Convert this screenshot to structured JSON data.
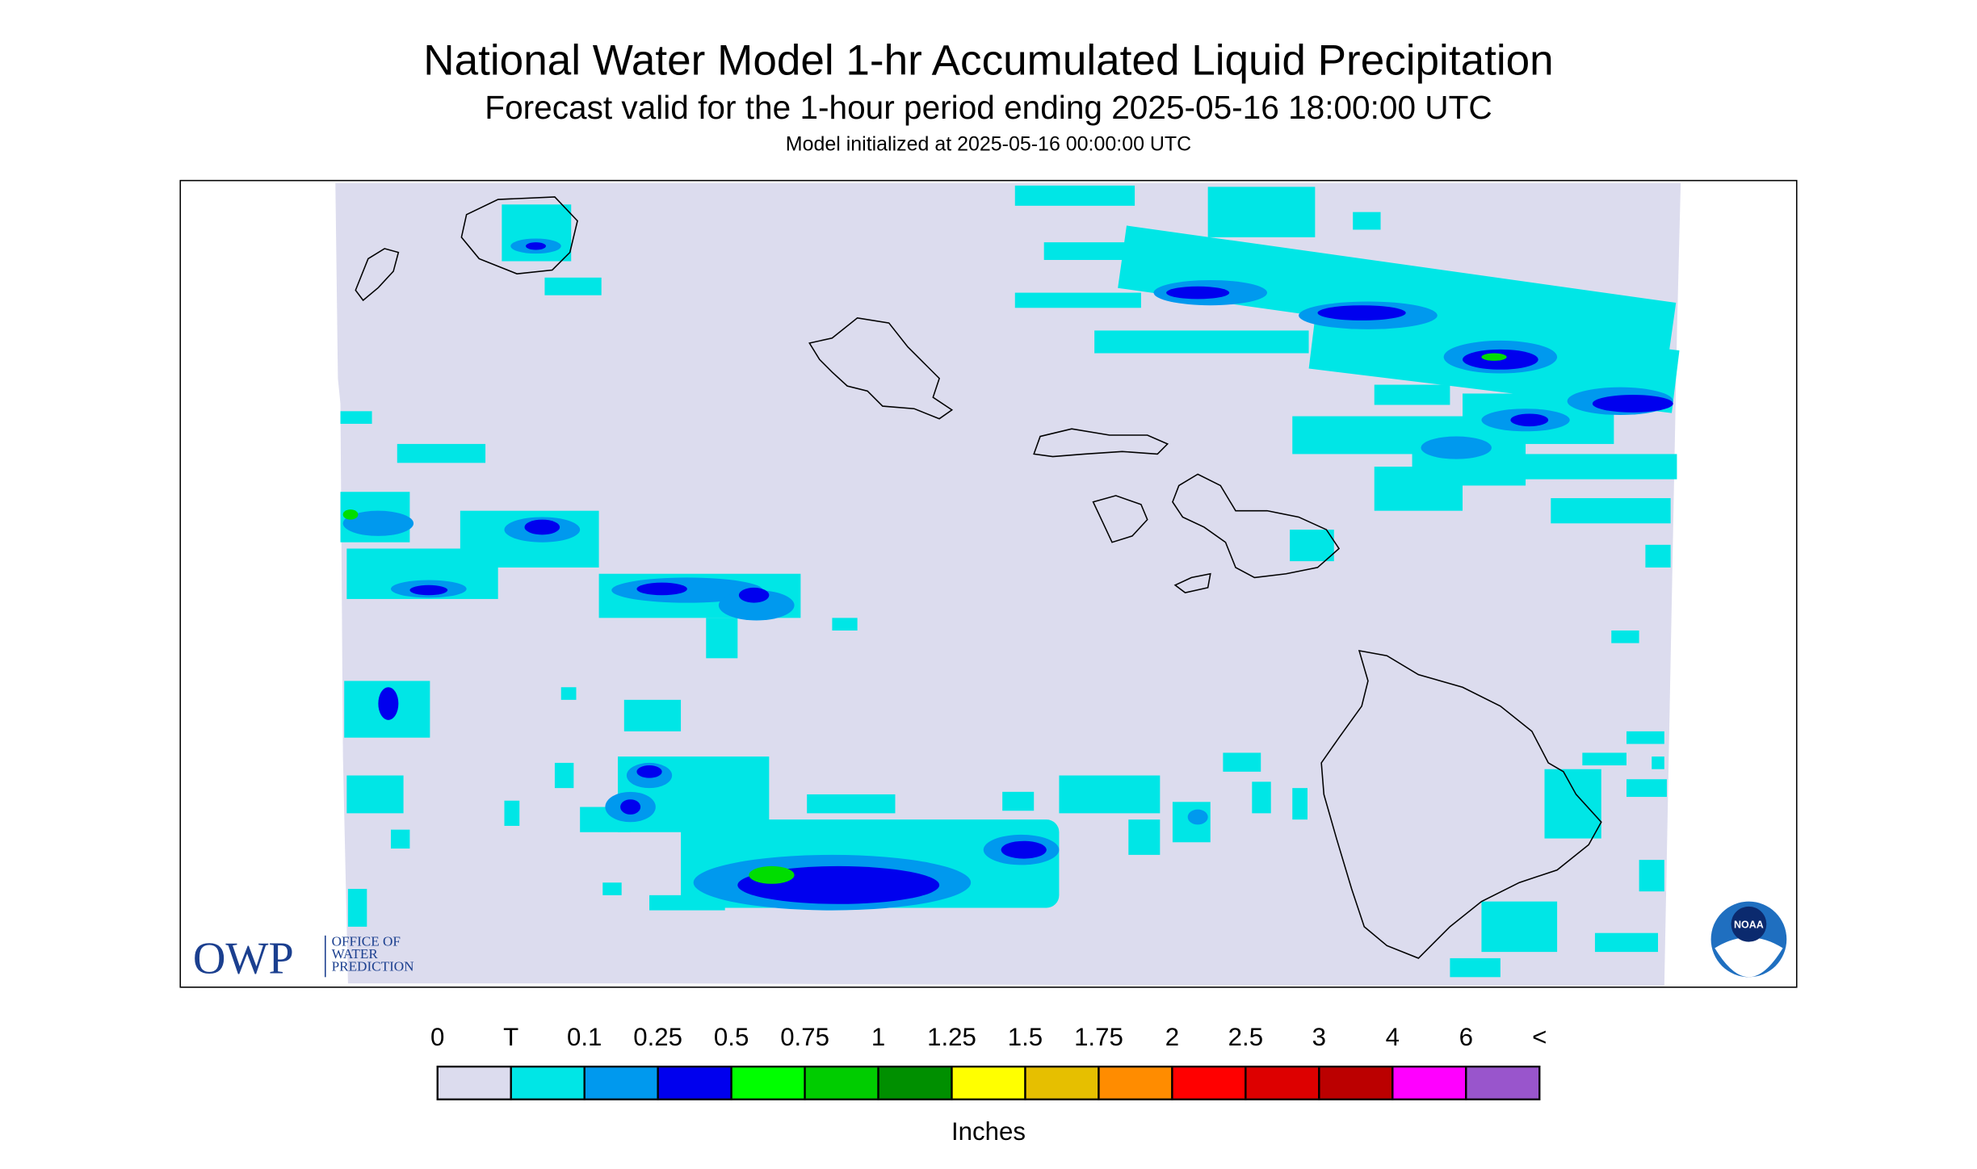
{
  "title": "National Water Model 1-hr Accumulated Liquid Precipitation",
  "subtitle": "Forecast valid for the 1-hour period ending 2025-05-16 18:00:00 UTC",
  "init": "Model initialized at 2025-05-16 00:00:00 UTC",
  "legend": {
    "labels": [
      "0",
      "T",
      "0.1",
      "0.25",
      "0.5",
      "0.75",
      "1",
      "1.25",
      "1.5",
      "1.75",
      "2",
      "2.5",
      "3",
      "4",
      "6",
      "<"
    ],
    "colors": [
      "#dcdcee",
      "#00e6e6",
      "#0099ee",
      "#0000ee",
      "#00ff00",
      "#00cc00",
      "#008f00",
      "#ffff00",
      "#e6bf00",
      "#ff8c00",
      "#ff0000",
      "#dd0000",
      "#bb0000",
      "#ff00ff",
      "#9955cc"
    ],
    "unit": "Inches"
  },
  "logos": {
    "owp": "OWP",
    "office": [
      "OFFICE OF",
      "WATER",
      "PREDICTION"
    ],
    "noaa": "NOAA"
  }
}
